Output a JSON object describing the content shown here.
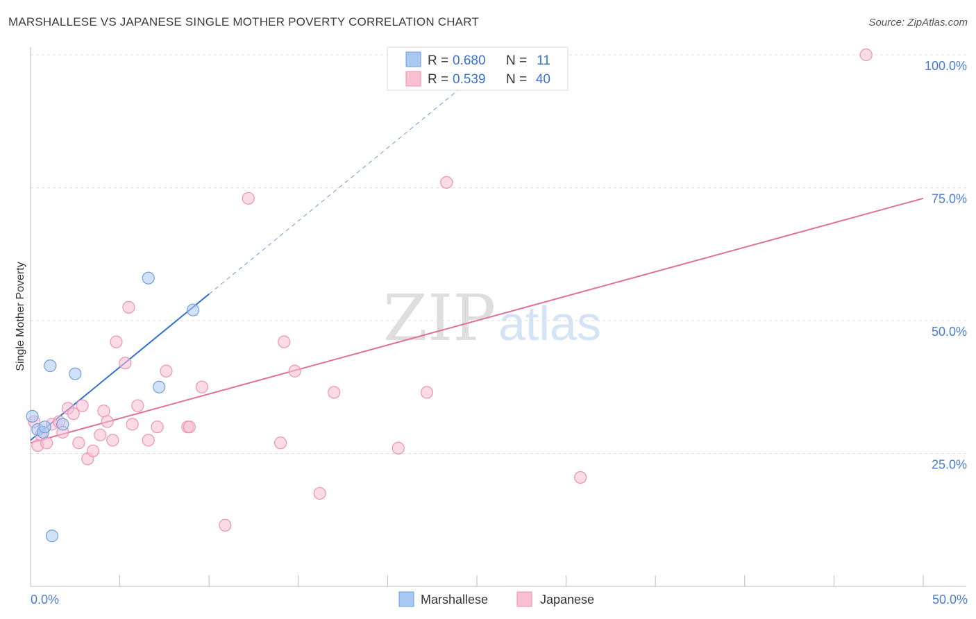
{
  "header": {
    "title": "MARSHALLESE VS JAPANESE SINGLE MOTHER POVERTY CORRELATION CHART",
    "source": "Source: ZipAtlas.com"
  },
  "watermark": {
    "zip": "ZIP",
    "atlas": "atlas"
  },
  "chart_data": {
    "type": "scatter",
    "title": "MARSHALLESE VS JAPANESE SINGLE MOTHER POVERTY CORRELATION CHART",
    "xlabel": "",
    "ylabel": "Single Mother Poverty",
    "xlim": [
      0,
      50
    ],
    "ylim": [
      0,
      102
    ],
    "x_tick_labels": {
      "left": "0.0%",
      "right": "50.0%"
    },
    "y_ticks": [
      {
        "value": 25,
        "label": "25.0%"
      },
      {
        "value": 50,
        "label": "50.0%"
      },
      {
        "value": 75,
        "label": "75.0%"
      },
      {
        "value": 100,
        "label": "100.0%"
      }
    ],
    "grid": true,
    "legend_position": "top-center",
    "colors": {
      "marshallese_fill": "#a9c8f2",
      "marshallese_stroke": "#6f9ee0",
      "marshallese_line": "#2f6fcf",
      "japanese_fill": "#f8c0d1",
      "japanese_stroke": "#ec93b0",
      "japanese_line": "#e07098",
      "legend_value": "#3a72cf"
    },
    "legend": [
      {
        "key": "marshallese",
        "r_label": "R =",
        "r_value": "0.680",
        "n_label": "N =",
        "n_value": "11"
      },
      {
        "key": "japanese",
        "r_label": "R =",
        "r_value": "0.539",
        "n_label": "N =",
        "n_value": "40"
      }
    ],
    "series": [
      {
        "name": "Marshallese",
        "key": "marshallese",
        "points": [
          [
            0.1,
            32
          ],
          [
            0.4,
            29.5
          ],
          [
            0.7,
            29
          ],
          [
            0.8,
            30
          ],
          [
            1.1,
            41.5
          ],
          [
            1.2,
            9.5
          ],
          [
            1.8,
            30.5
          ],
          [
            2.5,
            40
          ],
          [
            6.6,
            58
          ],
          [
            7.2,
            37.5
          ],
          [
            9.1,
            52
          ]
        ],
        "trend": {
          "x0": 0,
          "y0": 27.5,
          "x1": 10,
          "y1": 55,
          "dash_to_x": 24.5
        }
      },
      {
        "name": "Japanese",
        "key": "japanese",
        "points": [
          [
            0.2,
            31
          ],
          [
            0.4,
            26.5
          ],
          [
            0.6,
            28.5
          ],
          [
            0.9,
            27
          ],
          [
            1.2,
            30.5
          ],
          [
            1.6,
            31
          ],
          [
            1.8,
            29
          ],
          [
            2.1,
            33.5
          ],
          [
            2.4,
            32.5
          ],
          [
            2.7,
            27
          ],
          [
            2.9,
            34
          ],
          [
            3.2,
            24
          ],
          [
            3.5,
            25.5
          ],
          [
            3.9,
            28.5
          ],
          [
            4.1,
            33
          ],
          [
            4.3,
            31
          ],
          [
            4.6,
            27.5
          ],
          [
            4.8,
            46
          ],
          [
            5.3,
            42
          ],
          [
            5.5,
            52.5
          ],
          [
            5.7,
            30.5
          ],
          [
            6.0,
            34
          ],
          [
            6.6,
            27.5
          ],
          [
            7.1,
            30
          ],
          [
            7.6,
            40.5
          ],
          [
            8.8,
            30
          ],
          [
            8.9,
            30
          ],
          [
            9.6,
            37.5
          ],
          [
            10.9,
            11.5
          ],
          [
            12.2,
            73
          ],
          [
            14.0,
            27
          ],
          [
            14.2,
            46
          ],
          [
            14.8,
            40.5
          ],
          [
            16.2,
            17.5
          ],
          [
            17.0,
            36.5
          ],
          [
            20.6,
            26
          ],
          [
            22.2,
            36.5
          ],
          [
            23.3,
            76
          ],
          [
            30.8,
            20.5
          ],
          [
            46.8,
            100
          ]
        ],
        "trend": {
          "x0": 0,
          "y0": 27,
          "x1": 50,
          "y1": 73,
          "dash_to_x": 50
        }
      }
    ]
  }
}
